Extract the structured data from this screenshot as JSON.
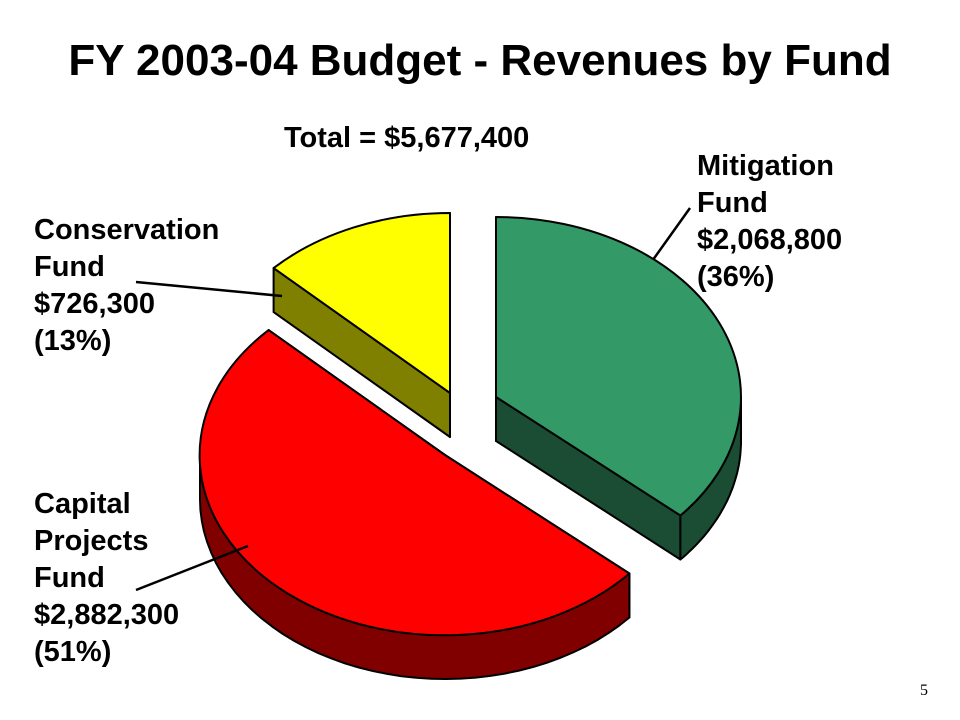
{
  "slide": {
    "title": "FY 2003-04 Budget - Revenues by Fund",
    "page_number": "5"
  },
  "chart_data": {
    "type": "pie",
    "title": "FY 2003-04 Budget - Revenues by Fund",
    "subtitle": "Total = $5,677,400",
    "total": 5677400,
    "slices": [
      {
        "name": "Mitigation Fund",
        "value": 2068800,
        "value_label": "$2,068,800",
        "percent_label": "(36%)",
        "label_lines": [
          "Mitigation",
          "Fund",
          "$2,068,800",
          "(36%)"
        ],
        "color": "#339966",
        "side_color": "#1a4d33"
      },
      {
        "name": "Capital Projects Fund",
        "value": 2882300,
        "value_label": "$2,882,300",
        "percent_label": "(51%)",
        "label_lines": [
          "Capital",
          "Projects",
          "Fund",
          "$2,882,300",
          "(51%)"
        ],
        "color": "#ff0000",
        "side_color": "#800000"
      },
      {
        "name": "Conservation Fund",
        "value": 726300,
        "value_label": "$726,300",
        "percent_label": "(13%)",
        "label_lines": [
          "Conservation",
          "Fund",
          "$726,300",
          "(13%)"
        ],
        "color": "#ffff00",
        "side_color": "#808000"
      }
    ],
    "style": "3d-exploded-pie",
    "legend": "none"
  }
}
